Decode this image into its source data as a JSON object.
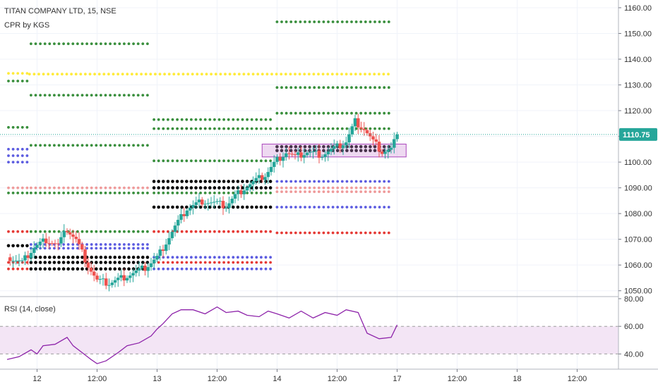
{
  "chart_data": {
    "type": "candlestick",
    "title": "TITAN COMPANY LTD, 15, NSE",
    "indicator_label": "CPR by KGS",
    "rsi_label": "RSI (14, close)",
    "price_ylim": [
      1048,
      1163
    ],
    "price_ticks": [
      1050,
      1060,
      1070,
      1080,
      1090,
      1100,
      1110,
      1120,
      1130,
      1140,
      1150,
      1160
    ],
    "price_tick_labels": [
      "1050.00",
      "1060.00",
      "1070.00",
      "1080.00",
      "1090.00",
      "1100.00",
      "1110.00",
      "1120.00",
      "1130.00",
      "1140.00",
      "1150.00",
      "1160.00"
    ],
    "last_price": 1110.75,
    "last_price_label": "1110.75",
    "rsi_ylim": [
      29,
      81
    ],
    "rsi_ticks": [
      40,
      60,
      80
    ],
    "rsi_tick_labels": [
      "40.00",
      "60.00",
      "80.00"
    ],
    "rsi_band": [
      40,
      60
    ],
    "x_span": [
      0,
      24
    ],
    "x_ticks": [
      {
        "x": 1,
        "label": "12"
      },
      {
        "x": 3,
        "label": "12:00"
      },
      {
        "x": 5,
        "label": "13"
      },
      {
        "x": 7,
        "label": "12:00"
      },
      {
        "x": 9,
        "label": "14"
      },
      {
        "x": 11,
        "label": "12:00"
      },
      {
        "x": 13,
        "label": "17"
      },
      {
        "x": 15,
        "label": "12:00"
      },
      {
        "x": 17,
        "label": "18"
      },
      {
        "x": 19,
        "label": "12:00"
      }
    ],
    "pivot_levels": [
      {
        "from": 0,
        "to": 0.7,
        "value": 1134.5,
        "color": "#ffeb3b"
      },
      {
        "from": 0.7,
        "to": 12.8,
        "value": 1134.2,
        "color": "#ffeb3b"
      },
      {
        "from": 0,
        "to": 0.7,
        "value": 1131.5,
        "color": "#388e3c"
      },
      {
        "from": 0,
        "to": 0.7,
        "value": 1113.5,
        "color": "#388e3c"
      },
      {
        "from": 0,
        "to": 0.7,
        "value": 1105,
        "color": "#5c5ce0"
      },
      {
        "from": 0,
        "to": 0.7,
        "value": 1102.5,
        "color": "#5c5ce0"
      },
      {
        "from": 0,
        "to": 0.7,
        "value": 1100,
        "color": "#5c5ce0"
      },
      {
        "from": 0,
        "to": 0.7,
        "value": 1090,
        "color": "#ef9a9a"
      },
      {
        "from": 0,
        "to": 0.7,
        "value": 1088,
        "color": "#388e3c"
      },
      {
        "from": 0,
        "to": 0.7,
        "value": 1073,
        "color": "#e53935"
      },
      {
        "from": 0,
        "to": 0.7,
        "value": 1067.5,
        "color": "#000000"
      },
      {
        "from": 0,
        "to": 0.7,
        "value": 1061,
        "color": "#e53935"
      },
      {
        "from": 0,
        "to": 0.7,
        "value": 1058.5,
        "color": "#e53935"
      },
      {
        "from": 0.75,
        "to": 4.8,
        "value": 1146,
        "color": "#388e3c"
      },
      {
        "from": 0.75,
        "to": 4.8,
        "value": 1126,
        "color": "#388e3c"
      },
      {
        "from": 0.75,
        "to": 4.8,
        "value": 1106.5,
        "color": "#388e3c"
      },
      {
        "from": 0.75,
        "to": 4.8,
        "value": 1090,
        "color": "#ef9a9a"
      },
      {
        "from": 0.75,
        "to": 4.8,
        "value": 1088,
        "color": "#388e3c"
      },
      {
        "from": 0.75,
        "to": 4.8,
        "value": 1073,
        "color": "#388e3c"
      },
      {
        "from": 0.75,
        "to": 4.8,
        "value": 1068,
        "color": "#5c5ce0"
      },
      {
        "from": 0.75,
        "to": 4.8,
        "value": 1066.5,
        "color": "#5c5ce0"
      },
      {
        "from": 0.75,
        "to": 4.8,
        "value": 1063,
        "color": "#000000"
      },
      {
        "from": 0.75,
        "to": 4.8,
        "value": 1061,
        "color": "#000000"
      },
      {
        "from": 0.75,
        "to": 4.8,
        "value": 1058.5,
        "color": "#000000"
      },
      {
        "from": 4.85,
        "to": 8.9,
        "value": 1116.5,
        "color": "#388e3c"
      },
      {
        "from": 4.85,
        "to": 8.9,
        "value": 1113,
        "color": "#388e3c"
      },
      {
        "from": 4.85,
        "to": 8.9,
        "value": 1100.5,
        "color": "#388e3c"
      },
      {
        "from": 4.85,
        "to": 8.9,
        "value": 1092.5,
        "color": "#000000"
      },
      {
        "from": 4.85,
        "to": 8.9,
        "value": 1090,
        "color": "#000000"
      },
      {
        "from": 4.85,
        "to": 8.9,
        "value": 1088,
        "color": "#388e3c"
      },
      {
        "from": 4.85,
        "to": 8.9,
        "value": 1082.5,
        "color": "#000000"
      },
      {
        "from": 4.85,
        "to": 8.9,
        "value": 1073,
        "color": "#e53935"
      },
      {
        "from": 4.85,
        "to": 8.9,
        "value": 1063,
        "color": "#5c5ce0"
      },
      {
        "from": 4.85,
        "to": 8.9,
        "value": 1061,
        "color": "#e53935"
      },
      {
        "from": 4.85,
        "to": 8.9,
        "value": 1058.5,
        "color": "#5c5ce0"
      },
      {
        "from": 8.95,
        "to": 12.8,
        "value": 1154.5,
        "color": "#388e3c"
      },
      {
        "from": 8.95,
        "to": 12.8,
        "value": 1129,
        "color": "#388e3c"
      },
      {
        "from": 8.95,
        "to": 12.8,
        "value": 1119,
        "color": "#388e3c"
      },
      {
        "from": 8.95,
        "to": 12.8,
        "value": 1113,
        "color": "#388e3c"
      },
      {
        "from": 8.95,
        "to": 12.8,
        "value": 1106,
        "color": "#000000"
      },
      {
        "from": 8.95,
        "to": 12.8,
        "value": 1104.5,
        "color": "#000000"
      },
      {
        "from": 8.95,
        "to": 12.8,
        "value": 1092.5,
        "color": "#5c5ce0"
      },
      {
        "from": 8.95,
        "to": 12.8,
        "value": 1090,
        "color": "#ef9a9a"
      },
      {
        "from": 8.95,
        "to": 12.8,
        "value": 1088.5,
        "color": "#ef9a9a"
      },
      {
        "from": 8.95,
        "to": 12.8,
        "value": 1082.5,
        "color": "#5c5ce0"
      },
      {
        "from": 8.95,
        "to": 12.8,
        "value": 1072.5,
        "color": "#e53935"
      }
    ],
    "highlight_box": {
      "from": 8.5,
      "to": 13.3,
      "low": 1102,
      "high": 1107,
      "color": "#ce93d8"
    },
    "candle_keyframes": [
      [
        0,
        1063
      ],
      [
        0.5,
        1061
      ],
      [
        0.9,
        1067
      ],
      [
        1.3,
        1070
      ],
      [
        1.7,
        1068
      ],
      [
        2.0,
        1074
      ],
      [
        2.3,
        1070
      ],
      [
        2.7,
        1060
      ],
      [
        3.0,
        1054
      ],
      [
        3.4,
        1053
      ],
      [
        3.8,
        1055
      ],
      [
        4.2,
        1057
      ],
      [
        4.6,
        1059
      ],
      [
        5.0,
        1063
      ],
      [
        5.3,
        1069
      ],
      [
        5.6,
        1075
      ],
      [
        6.0,
        1082
      ],
      [
        6.5,
        1085
      ],
      [
        7.0,
        1084
      ],
      [
        7.3,
        1083
      ],
      [
        7.6,
        1087
      ],
      [
        7.9,
        1090
      ],
      [
        8.3,
        1093
      ],
      [
        8.6,
        1095
      ],
      [
        9.0,
        1101
      ],
      [
        9.3,
        1104
      ],
      [
        9.6,
        1102
      ],
      [
        10.0,
        1104
      ],
      [
        10.5,
        1103
      ],
      [
        11.0,
        1106
      ],
      [
        11.3,
        1108
      ],
      [
        11.6,
        1116
      ],
      [
        11.9,
        1113
      ],
      [
        12.2,
        1108
      ],
      [
        12.5,
        1104
      ],
      [
        12.8,
        1105
      ],
      [
        13.0,
        1110.75
      ]
    ],
    "rsi": {
      "x": [
        0,
        0.4,
        0.8,
        1.0,
        1.2,
        1.6,
        2.0,
        2.2,
        2.5,
        2.8,
        3.0,
        3.3,
        3.7,
        4.0,
        4.4,
        4.8,
        5.0,
        5.2,
        5.5,
        5.8,
        6.2,
        6.6,
        7.0,
        7.3,
        7.7,
        8.0,
        8.4,
        8.7,
        9.0,
        9.4,
        9.8,
        10.2,
        10.6,
        11.0,
        11.3,
        11.7,
        12.0,
        12.4,
        12.8,
        13.0
      ],
      "values": [
        36,
        38,
        43,
        40,
        46,
        47,
        52,
        46,
        41,
        36,
        33,
        35,
        41,
        46,
        48,
        53,
        58,
        62,
        69,
        72,
        72,
        69,
        74,
        70,
        71,
        68,
        67,
        71,
        69,
        66,
        71,
        66,
        70,
        68,
        72,
        70,
        55,
        51,
        52,
        61
      ]
    }
  }
}
